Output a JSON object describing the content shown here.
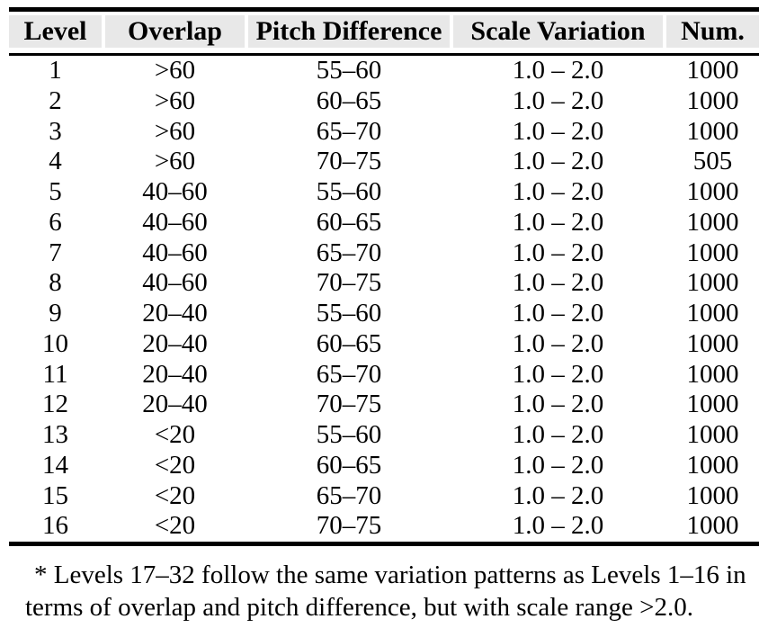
{
  "table": {
    "headers": [
      "Level",
      "Overlap",
      "Pitch Difference",
      "Scale Variation",
      "Num."
    ],
    "rows": [
      [
        "1",
        ">60",
        "55–60",
        "1.0 – 2.0",
        "1000"
      ],
      [
        "2",
        ">60",
        "60–65",
        "1.0 – 2.0",
        "1000"
      ],
      [
        "3",
        ">60",
        "65–70",
        "1.0 – 2.0",
        "1000"
      ],
      [
        "4",
        ">60",
        "70–75",
        "1.0 – 2.0",
        "505"
      ],
      [
        "5",
        "40–60",
        "55–60",
        "1.0 – 2.0",
        "1000"
      ],
      [
        "6",
        "40–60",
        "60–65",
        "1.0 – 2.0",
        "1000"
      ],
      [
        "7",
        "40–60",
        "65–70",
        "1.0 – 2.0",
        "1000"
      ],
      [
        "8",
        "40–60",
        "70–75",
        "1.0 – 2.0",
        "1000"
      ],
      [
        "9",
        "20–40",
        "55–60",
        "1.0 – 2.0",
        "1000"
      ],
      [
        "10",
        "20–40",
        "60–65",
        "1.0 – 2.0",
        "1000"
      ],
      [
        "11",
        "20–40",
        "65–70",
        "1.0 – 2.0",
        "1000"
      ],
      [
        "12",
        "20–40",
        "70–75",
        "1.0 – 2.0",
        "1000"
      ],
      [
        "13",
        "<20",
        "55–60",
        "1.0 – 2.0",
        "1000"
      ],
      [
        "14",
        "<20",
        "60–65",
        "1.0 – 2.0",
        "1000"
      ],
      [
        "15",
        "<20",
        "65–70",
        "1.0 – 2.0",
        "1000"
      ],
      [
        "16",
        "<20",
        "70–75",
        "1.0 – 2.0",
        "1000"
      ]
    ],
    "footnote": "* Levels 17–32 follow the same variation patterns as Levels 1–16 in terms of overlap and pitch difference, but with scale range >2.0."
  },
  "colors": {
    "header_bg": "#e8e8e8",
    "rule": "#000000",
    "text": "#000000",
    "background": "#ffffff"
  }
}
